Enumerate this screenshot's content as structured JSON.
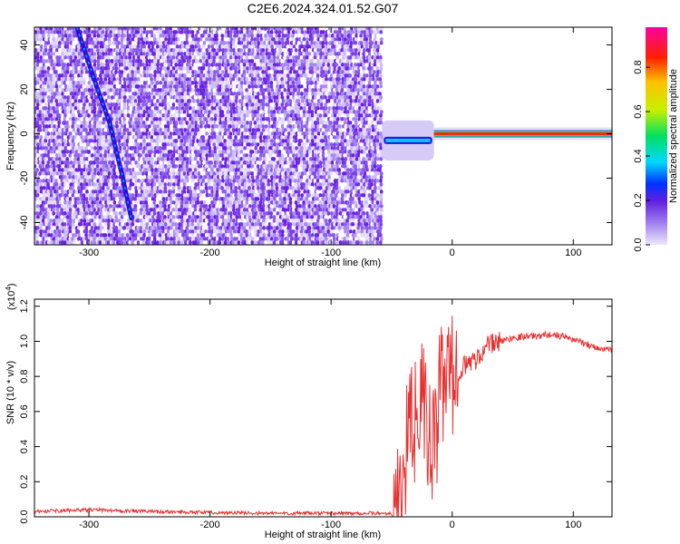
{
  "figure": {
    "title": "C2E6.2024.324.01.52.G07"
  },
  "chart_data": [
    {
      "type": "heatmap",
      "title": "C2E6.2024.324.01.52.G07",
      "xlabel": "Height of straight line (km)",
      "ylabel": "Frequency (Hz)",
      "xlim": [
        -345,
        132
      ],
      "ylim": [
        -50,
        48
      ],
      "xticks": [
        -300,
        -200,
        -100,
        0,
        100
      ],
      "yticks": [
        -40,
        -20,
        0,
        20,
        40
      ],
      "colorbar": {
        "label": "Normalized spectral amplitude",
        "range": [
          0.0,
          0.98
        ],
        "ticks": [
          0.0,
          0.2,
          0.4,
          0.6,
          0.8
        ],
        "tick_labels": [
          "0.0",
          "0.2",
          "0.4",
          "0.6",
          "0.8"
        ],
        "colormap": "rainbow",
        "colors": [
          "#ece8f8",
          "#a080f0",
          "#6020e0",
          "#0030ff",
          "#00d8ff",
          "#00e060",
          "#c8f000",
          "#ffc000",
          "#ff2000",
          "#ff00a0"
        ]
      },
      "regions": [
        {
          "name": "noise",
          "x_range": [
            -345,
            -58
          ],
          "frequency_range": [
            -50,
            48
          ],
          "amplitude": "low (0.0-0.15)"
        },
        {
          "name": "doppler-track",
          "x": [
            -310,
            -296,
            -283,
            -272,
            -265
          ],
          "y": [
            48,
            25,
            5,
            -20,
            -38
          ],
          "amplitude": "0.2-0.4"
        },
        {
          "name": "transition",
          "x_range": [
            -58,
            -15
          ],
          "frequency_range": [
            -12,
            6
          ],
          "amplitude": "0.2-0.6"
        },
        {
          "name": "direct-signal",
          "x_range": [
            -15,
            132
          ],
          "frequency": 0,
          "amplitude": "~0.98"
        }
      ]
    },
    {
      "type": "line",
      "xlabel": "Height of straight line (km)",
      "ylabel": "SNR (10 * v/v)",
      "y_multiplier": "(x10^4)",
      "xlim": [
        -345,
        132
      ],
      "ylim": [
        0,
        1.24
      ],
      "xticks": [
        -300,
        -200,
        -100,
        0,
        100
      ],
      "yticks": [
        0.0,
        0.2,
        0.4,
        0.6,
        0.8,
        1.0,
        1.2
      ],
      "ytick_labels": [
        "0.0",
        "0.2",
        "0.4",
        "0.6",
        "0.8",
        "1.0",
        "1.2"
      ],
      "color": "#e83030",
      "x": [
        -345,
        -300,
        -250,
        -200,
        -150,
        -100,
        -60,
        -50,
        -45,
        -40,
        -35,
        -30,
        -25,
        -20,
        -15,
        -12,
        -10,
        -5,
        0,
        10,
        20,
        30,
        40,
        50,
        60,
        70,
        80,
        90,
        100,
        110,
        120,
        132
      ],
      "y": [
        0.03,
        0.04,
        0.03,
        0.025,
        0.02,
        0.02,
        0.02,
        0.02,
        0.05,
        0.3,
        0.5,
        0.55,
        0.7,
        0.45,
        0.4,
        0.5,
        0.75,
        0.8,
        0.8,
        0.86,
        0.9,
        0.98,
        1.0,
        1.02,
        1.03,
        1.03,
        1.04,
        1.03,
        1.01,
        0.99,
        0.96,
        0.95
      ]
    }
  ]
}
